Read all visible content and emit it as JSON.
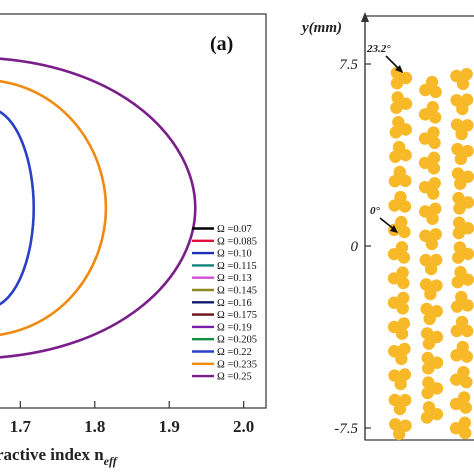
{
  "chart_data": [
    {
      "type": "line",
      "panel_label": "(a)",
      "xlabel": "ractive index n",
      "xlabel_sub": "eff",
      "x_ticks": [
        "1.7",
        "1.8",
        "1.9",
        "2.0"
      ],
      "xlim": [
        1.67,
        2.03
      ],
      "legend": {
        "placement": "right",
        "symbol": "Ω",
        "prefix": " ="
      },
      "series": [
        {
          "name": "0.07",
          "color": "#000000"
        },
        {
          "name": "0.085",
          "color": "#e0113b"
        },
        {
          "name": "0.10",
          "color": "#1e2fb5"
        },
        {
          "name": "0.115",
          "color": "#11847a"
        },
        {
          "name": "0.13",
          "color": "#d44cd4"
        },
        {
          "name": "0.145",
          "color": "#8a8a20"
        },
        {
          "name": "0.16",
          "color": "#101a6e"
        },
        {
          "name": "0.175",
          "color": "#6b0f1a"
        },
        {
          "name": "0.19",
          "color": "#7a1fa6"
        },
        {
          "name": "0.205",
          "color": "#109040"
        },
        {
          "name": "0.22",
          "color": "#2a40c8"
        },
        {
          "name": "0.235",
          "color": "#f08a10"
        },
        {
          "name": "0.25",
          "color": "#7a1e8a"
        }
      ],
      "curves": [
        {
          "series": "0.22",
          "color": "#2a40c8",
          "tip_x": 1.718,
          "y_center": 0.0
        },
        {
          "series": "0.235",
          "color": "#f08a10",
          "tip_x": 1.815,
          "y_center": 0.0
        },
        {
          "series": "0.25",
          "color": "#7a1e8a",
          "tip_x": 1.935,
          "y_center": 0.0
        }
      ]
    },
    {
      "type": "scatter",
      "ylabel": "y(mm)",
      "y_ticks": [
        "7.5",
        "0",
        "-7.5"
      ],
      "ylim": [
        -7.5,
        7.5
      ],
      "annotations": [
        "23.2°",
        "0°"
      ],
      "marker_color": "#f7b928"
    }
  ]
}
